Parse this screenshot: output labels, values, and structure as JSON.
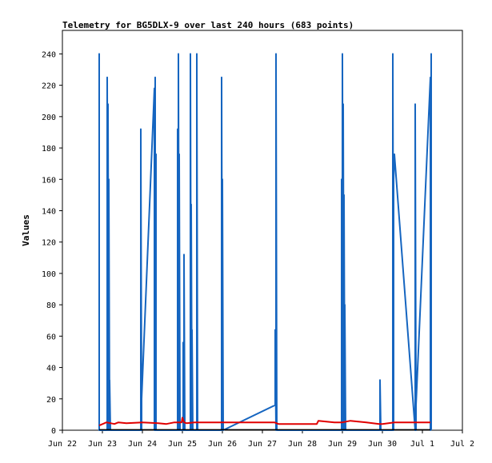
{
  "chart_data": {
    "type": "line",
    "title": "Telemetry for BG5DLX-9 over last 240 hours (683 points)",
    "xlabel": "",
    "ylabel": "Values",
    "x_ticks": [
      "Jun 22",
      "Jun 23",
      "Jun 24",
      "Jun 25",
      "Jun 26",
      "Jun 27",
      "Jun 28",
      "Jun 29",
      "Jun 30",
      "Jul 1",
      "Jul 2"
    ],
    "xlim_days": [
      0,
      10
    ],
    "ylim": [
      0,
      255
    ],
    "y_ticks": [
      0,
      20,
      40,
      60,
      80,
      100,
      120,
      140,
      160,
      180,
      200,
      220,
      240
    ],
    "grid": false,
    "series": [
      {
        "color": "#1565c0",
        "points": [
          [
            0.92,
            0
          ],
          [
            0.92,
            240
          ],
          [
            0.92,
            0
          ],
          [
            1.12,
            0
          ],
          [
            1.12,
            225
          ],
          [
            1.14,
            0
          ],
          [
            1.14,
            208
          ],
          [
            1.16,
            0
          ],
          [
            1.16,
            160
          ],
          [
            1.18,
            0
          ],
          [
            1.18,
            32
          ],
          [
            1.2,
            0
          ],
          [
            1.96,
            0
          ],
          [
            1.96,
            192
          ],
          [
            1.98,
            0
          ],
          [
            1.98,
            20
          ],
          [
            2.3,
            218
          ],
          [
            2.3,
            0
          ],
          [
            2.32,
            225
          ],
          [
            2.32,
            0
          ],
          [
            2.34,
            176
          ],
          [
            2.34,
            0
          ],
          [
            2.88,
            0
          ],
          [
            2.88,
            192
          ],
          [
            2.9,
            0
          ],
          [
            2.9,
            240
          ],
          [
            2.92,
            0
          ],
          [
            2.92,
            176
          ],
          [
            2.94,
            0
          ],
          [
            3.02,
            0
          ],
          [
            3.02,
            56
          ],
          [
            3.04,
            0
          ],
          [
            3.04,
            112
          ],
          [
            3.06,
            0
          ],
          [
            3.2,
            0
          ],
          [
            3.2,
            240
          ],
          [
            3.22,
            0
          ],
          [
            3.22,
            144
          ],
          [
            3.24,
            0
          ],
          [
            3.24,
            64
          ],
          [
            3.26,
            0
          ],
          [
            3.36,
            0
          ],
          [
            3.36,
            240
          ],
          [
            3.38,
            0
          ],
          [
            3.98,
            0
          ],
          [
            3.98,
            225
          ],
          [
            4.0,
            0
          ],
          [
            4.0,
            160
          ],
          [
            4.02,
            0
          ],
          [
            5.32,
            16
          ],
          [
            5.32,
            64
          ],
          [
            5.34,
            0
          ],
          [
            5.34,
            240
          ],
          [
            5.36,
            0
          ],
          [
            6.98,
            0
          ],
          [
            6.98,
            160
          ],
          [
            7.0,
            0
          ],
          [
            7.0,
            240
          ],
          [
            7.02,
            0
          ],
          [
            7.02,
            208
          ],
          [
            7.04,
            0
          ],
          [
            7.04,
            150
          ],
          [
            7.06,
            0
          ],
          [
            7.06,
            80
          ],
          [
            7.08,
            0
          ],
          [
            7.94,
            0
          ],
          [
            7.94,
            32
          ],
          [
            7.96,
            0
          ],
          [
            8.26,
            0
          ],
          [
            8.26,
            240
          ],
          [
            8.28,
            0
          ],
          [
            8.28,
            160
          ],
          [
            8.3,
            176
          ],
          [
            8.82,
            0
          ],
          [
            8.82,
            208
          ],
          [
            8.84,
            0
          ],
          [
            8.84,
            16
          ],
          [
            9.2,
            225
          ],
          [
            9.2,
            0
          ],
          [
            9.22,
            240
          ],
          [
            9.22,
            0
          ]
        ]
      },
      {
        "color": "#e00000",
        "points": [
          [
            0.92,
            3
          ],
          [
            1.1,
            5
          ],
          [
            1.3,
            4
          ],
          [
            1.4,
            5
          ],
          [
            1.6,
            4.5
          ],
          [
            2.0,
            5
          ],
          [
            2.4,
            4.5
          ],
          [
            2.6,
            4
          ],
          [
            2.8,
            5
          ],
          [
            2.98,
            5
          ],
          [
            3.0,
            8
          ],
          [
            3.04,
            5
          ],
          [
            3.1,
            4.5
          ],
          [
            3.3,
            5
          ],
          [
            3.6,
            5
          ],
          [
            4.0,
            5
          ],
          [
            4.6,
            5
          ],
          [
            5.3,
            5
          ],
          [
            5.4,
            4
          ],
          [
            6.0,
            4
          ],
          [
            6.36,
            4
          ],
          [
            6.4,
            6
          ],
          [
            6.8,
            5
          ],
          [
            7.0,
            5
          ],
          [
            7.2,
            6
          ],
          [
            7.6,
            5
          ],
          [
            7.92,
            4
          ],
          [
            8.0,
            4
          ],
          [
            8.3,
            5
          ],
          [
            8.6,
            5
          ],
          [
            9.0,
            5
          ],
          [
            9.2,
            5
          ]
        ]
      },
      {
        "color": "#000000",
        "points": [
          [
            0.92,
            0.3
          ],
          [
            9.2,
            0.3
          ]
        ]
      }
    ]
  }
}
